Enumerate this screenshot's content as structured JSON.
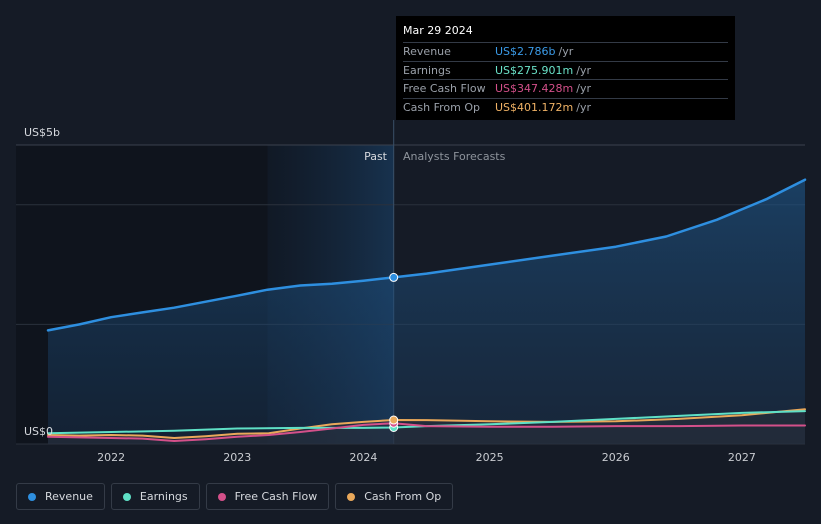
{
  "tooltip": {
    "date": "Mar 29 2024",
    "rows": [
      {
        "label": "Revenue",
        "value": "US$2.786b",
        "unit": "/yr",
        "color": "#3b9be8"
      },
      {
        "label": "Earnings",
        "value": "US$275.901m",
        "unit": "/yr",
        "color": "#6be3c9"
      },
      {
        "label": "Free Cash Flow",
        "value": "US$347.428m",
        "unit": "/yr",
        "color": "#d4508a"
      },
      {
        "label": "Cash From Op",
        "value": "US$401.172m",
        "unit": "/yr",
        "color": "#f0b265"
      }
    ]
  },
  "labels": {
    "past": "Past",
    "forecast": "Analysts Forecasts",
    "y_top": "US$5b",
    "y_bottom": "US$0"
  },
  "legend": [
    {
      "label": "Revenue",
      "color": "#2e8fe0"
    },
    {
      "label": "Earnings",
      "color": "#5fe0c6"
    },
    {
      "label": "Free Cash Flow",
      "color": "#d4508a"
    },
    {
      "label": "Cash From Op",
      "color": "#e9a85a"
    }
  ],
  "chart_data": {
    "type": "line",
    "ylim": [
      0,
      5
    ],
    "xlim": [
      2021.5,
      2027.5
    ],
    "x_ticks": [
      2022,
      2023,
      2024,
      2025,
      2026,
      2027
    ],
    "past_start": 2023.24,
    "forecast_start": 2024.24,
    "highlight_x": 2024.24,
    "series": [
      {
        "name": "Revenue",
        "color": "#2e8fe0",
        "points": [
          [
            2021.5,
            1.9
          ],
          [
            2021.75,
            2.0
          ],
          [
            2022.0,
            2.12
          ],
          [
            2022.25,
            2.2
          ],
          [
            2022.5,
            2.28
          ],
          [
            2022.75,
            2.38
          ],
          [
            2023.0,
            2.48
          ],
          [
            2023.24,
            2.58
          ],
          [
            2023.5,
            2.65
          ],
          [
            2023.75,
            2.68
          ],
          [
            2024.0,
            2.73
          ],
          [
            2024.24,
            2.786
          ],
          [
            2024.5,
            2.85
          ],
          [
            2025.0,
            3.0
          ],
          [
            2025.5,
            3.15
          ],
          [
            2026.0,
            3.3
          ],
          [
            2026.4,
            3.47
          ],
          [
            2026.8,
            3.75
          ],
          [
            2027.2,
            4.1
          ],
          [
            2027.5,
            4.42
          ]
        ]
      },
      {
        "name": "Earnings",
        "color": "#5fe0c6",
        "points": [
          [
            2021.5,
            0.18
          ],
          [
            2022.0,
            0.2
          ],
          [
            2022.5,
            0.22
          ],
          [
            2023.0,
            0.26
          ],
          [
            2023.5,
            0.27
          ],
          [
            2024.0,
            0.27
          ],
          [
            2024.24,
            0.276
          ],
          [
            2024.5,
            0.3
          ],
          [
            2025.0,
            0.33
          ],
          [
            2025.5,
            0.37
          ],
          [
            2026.0,
            0.42
          ],
          [
            2026.5,
            0.47
          ],
          [
            2027.0,
            0.52
          ],
          [
            2027.5,
            0.55
          ]
        ]
      },
      {
        "name": "Free Cash Flow",
        "color": "#d4508a",
        "points": [
          [
            2021.5,
            0.12
          ],
          [
            2021.75,
            0.11
          ],
          [
            2022.0,
            0.1
          ],
          [
            2022.25,
            0.09
          ],
          [
            2022.5,
            0.05
          ],
          [
            2022.75,
            0.08
          ],
          [
            2023.0,
            0.12
          ],
          [
            2023.25,
            0.15
          ],
          [
            2023.5,
            0.2
          ],
          [
            2023.75,
            0.26
          ],
          [
            2024.0,
            0.32
          ],
          [
            2024.24,
            0.347
          ],
          [
            2024.5,
            0.3
          ],
          [
            2025.0,
            0.29
          ],
          [
            2025.5,
            0.29
          ],
          [
            2026.0,
            0.3
          ],
          [
            2026.5,
            0.3
          ],
          [
            2027.0,
            0.31
          ],
          [
            2027.5,
            0.31
          ]
        ]
      },
      {
        "name": "Cash From Op",
        "color": "#e9a85a",
        "points": [
          [
            2021.5,
            0.15
          ],
          [
            2021.75,
            0.14
          ],
          [
            2022.0,
            0.15
          ],
          [
            2022.25,
            0.14
          ],
          [
            2022.5,
            0.1
          ],
          [
            2022.75,
            0.13
          ],
          [
            2023.0,
            0.17
          ],
          [
            2023.25,
            0.18
          ],
          [
            2023.5,
            0.26
          ],
          [
            2023.75,
            0.33
          ],
          [
            2024.0,
            0.37
          ],
          [
            2024.24,
            0.401
          ],
          [
            2024.5,
            0.4
          ],
          [
            2025.0,
            0.38
          ],
          [
            2025.5,
            0.37
          ],
          [
            2026.0,
            0.38
          ],
          [
            2026.5,
            0.42
          ],
          [
            2027.0,
            0.48
          ],
          [
            2027.5,
            0.58
          ]
        ]
      }
    ]
  }
}
